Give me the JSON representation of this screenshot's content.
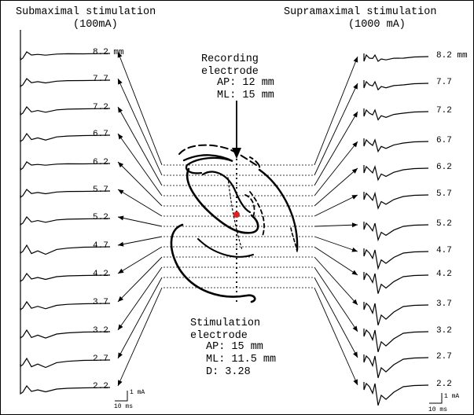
{
  "left_panel": {
    "title_line1": "Submaximal stimulation",
    "title_line2": "(100mA)",
    "traces": [
      {
        "depth": "8.2 mm"
      },
      {
        "depth": "7.7"
      },
      {
        "depth": "7.2"
      },
      {
        "depth": "6.7"
      },
      {
        "depth": "6.2"
      },
      {
        "depth": "5.7"
      },
      {
        "depth": "5.2"
      },
      {
        "depth": "4.7"
      },
      {
        "depth": "4.2"
      },
      {
        "depth": "3.7"
      },
      {
        "depth": "3.2"
      },
      {
        "depth": "2.7"
      },
      {
        "depth": "2.2"
      }
    ],
    "scale_amp": "1 mA",
    "scale_time": "10 ms"
  },
  "right_panel": {
    "title_line1": "Supramaximal stimulation",
    "title_line2": "(1000 mA)",
    "traces": [
      {
        "depth": "8.2 mm"
      },
      {
        "depth": "7.7"
      },
      {
        "depth": "7.2"
      },
      {
        "depth": "6.7"
      },
      {
        "depth": "6.2"
      },
      {
        "depth": "5.7"
      },
      {
        "depth": "5.2"
      },
      {
        "depth": "4.7"
      },
      {
        "depth": "4.2"
      },
      {
        "depth": "3.7"
      },
      {
        "depth": "3.2"
      },
      {
        "depth": "2.7"
      },
      {
        "depth": "2.2"
      }
    ],
    "scale_amp": "1 mA",
    "scale_time": "10 ms"
  },
  "recording": {
    "line1": "Recording",
    "line2": "electrode",
    "ap": "AP: 12 mm",
    "ml": "ML: 15 mm"
  },
  "stimulation": {
    "line1": "Stimulation",
    "line2": "electrode",
    "ap": "AP: 15 mm",
    "ml": "ML: 11.5 mm",
    "d": "D: 3.28"
  },
  "colors": {
    "ink": "#000000",
    "marker": "#e02020"
  }
}
